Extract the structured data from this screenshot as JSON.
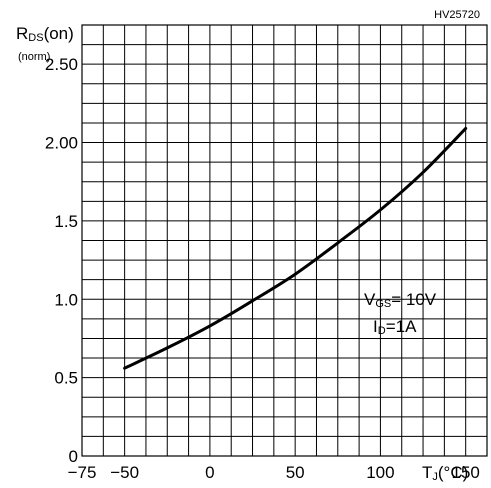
{
  "chart_data": {
    "type": "line",
    "part_number": "HV25720",
    "ylabel": {
      "main": "R",
      "sub": "DS",
      "tail": "(on)",
      "line2": "(norm)"
    },
    "xlabel": {
      "main": "T",
      "sub": "J",
      "tail": "(°C)"
    },
    "xlim": [
      -75,
      150
    ],
    "ylim": [
      0,
      2.5
    ],
    "x_ticks": [
      {
        "value": -75,
        "label": "−75"
      },
      {
        "value": -50,
        "label": "−50"
      },
      {
        "value": 0,
        "label": "0"
      },
      {
        "value": 50,
        "label": "50"
      },
      {
        "value": 100,
        "label": "100"
      },
      {
        "value": 150,
        "label": "150"
      }
    ],
    "y_ticks": [
      {
        "value": 0,
        "label": "0"
      },
      {
        "value": 0.5,
        "label": "0.5"
      },
      {
        "value": 1.0,
        "label": "1.0"
      },
      {
        "value": 1.5,
        "label": "1.5"
      },
      {
        "value": 2.0,
        "label": "2.00"
      },
      {
        "value": 2.5,
        "label": "2.50"
      }
    ],
    "grid": true,
    "series": [
      {
        "x": [
          -50,
          -25,
          0,
          25,
          50,
          75,
          100,
          125,
          150
        ],
        "y": [
          0.56,
          0.69,
          0.83,
          0.99,
          1.16,
          1.36,
          1.57,
          1.81,
          2.09
        ]
      }
    ],
    "annotation": {
      "line1": {
        "main": "V",
        "sub": "GS",
        "tail": "= 10V"
      },
      "line2": {
        "main": "I",
        "sub": "D",
        "tail": "=1A"
      }
    }
  }
}
